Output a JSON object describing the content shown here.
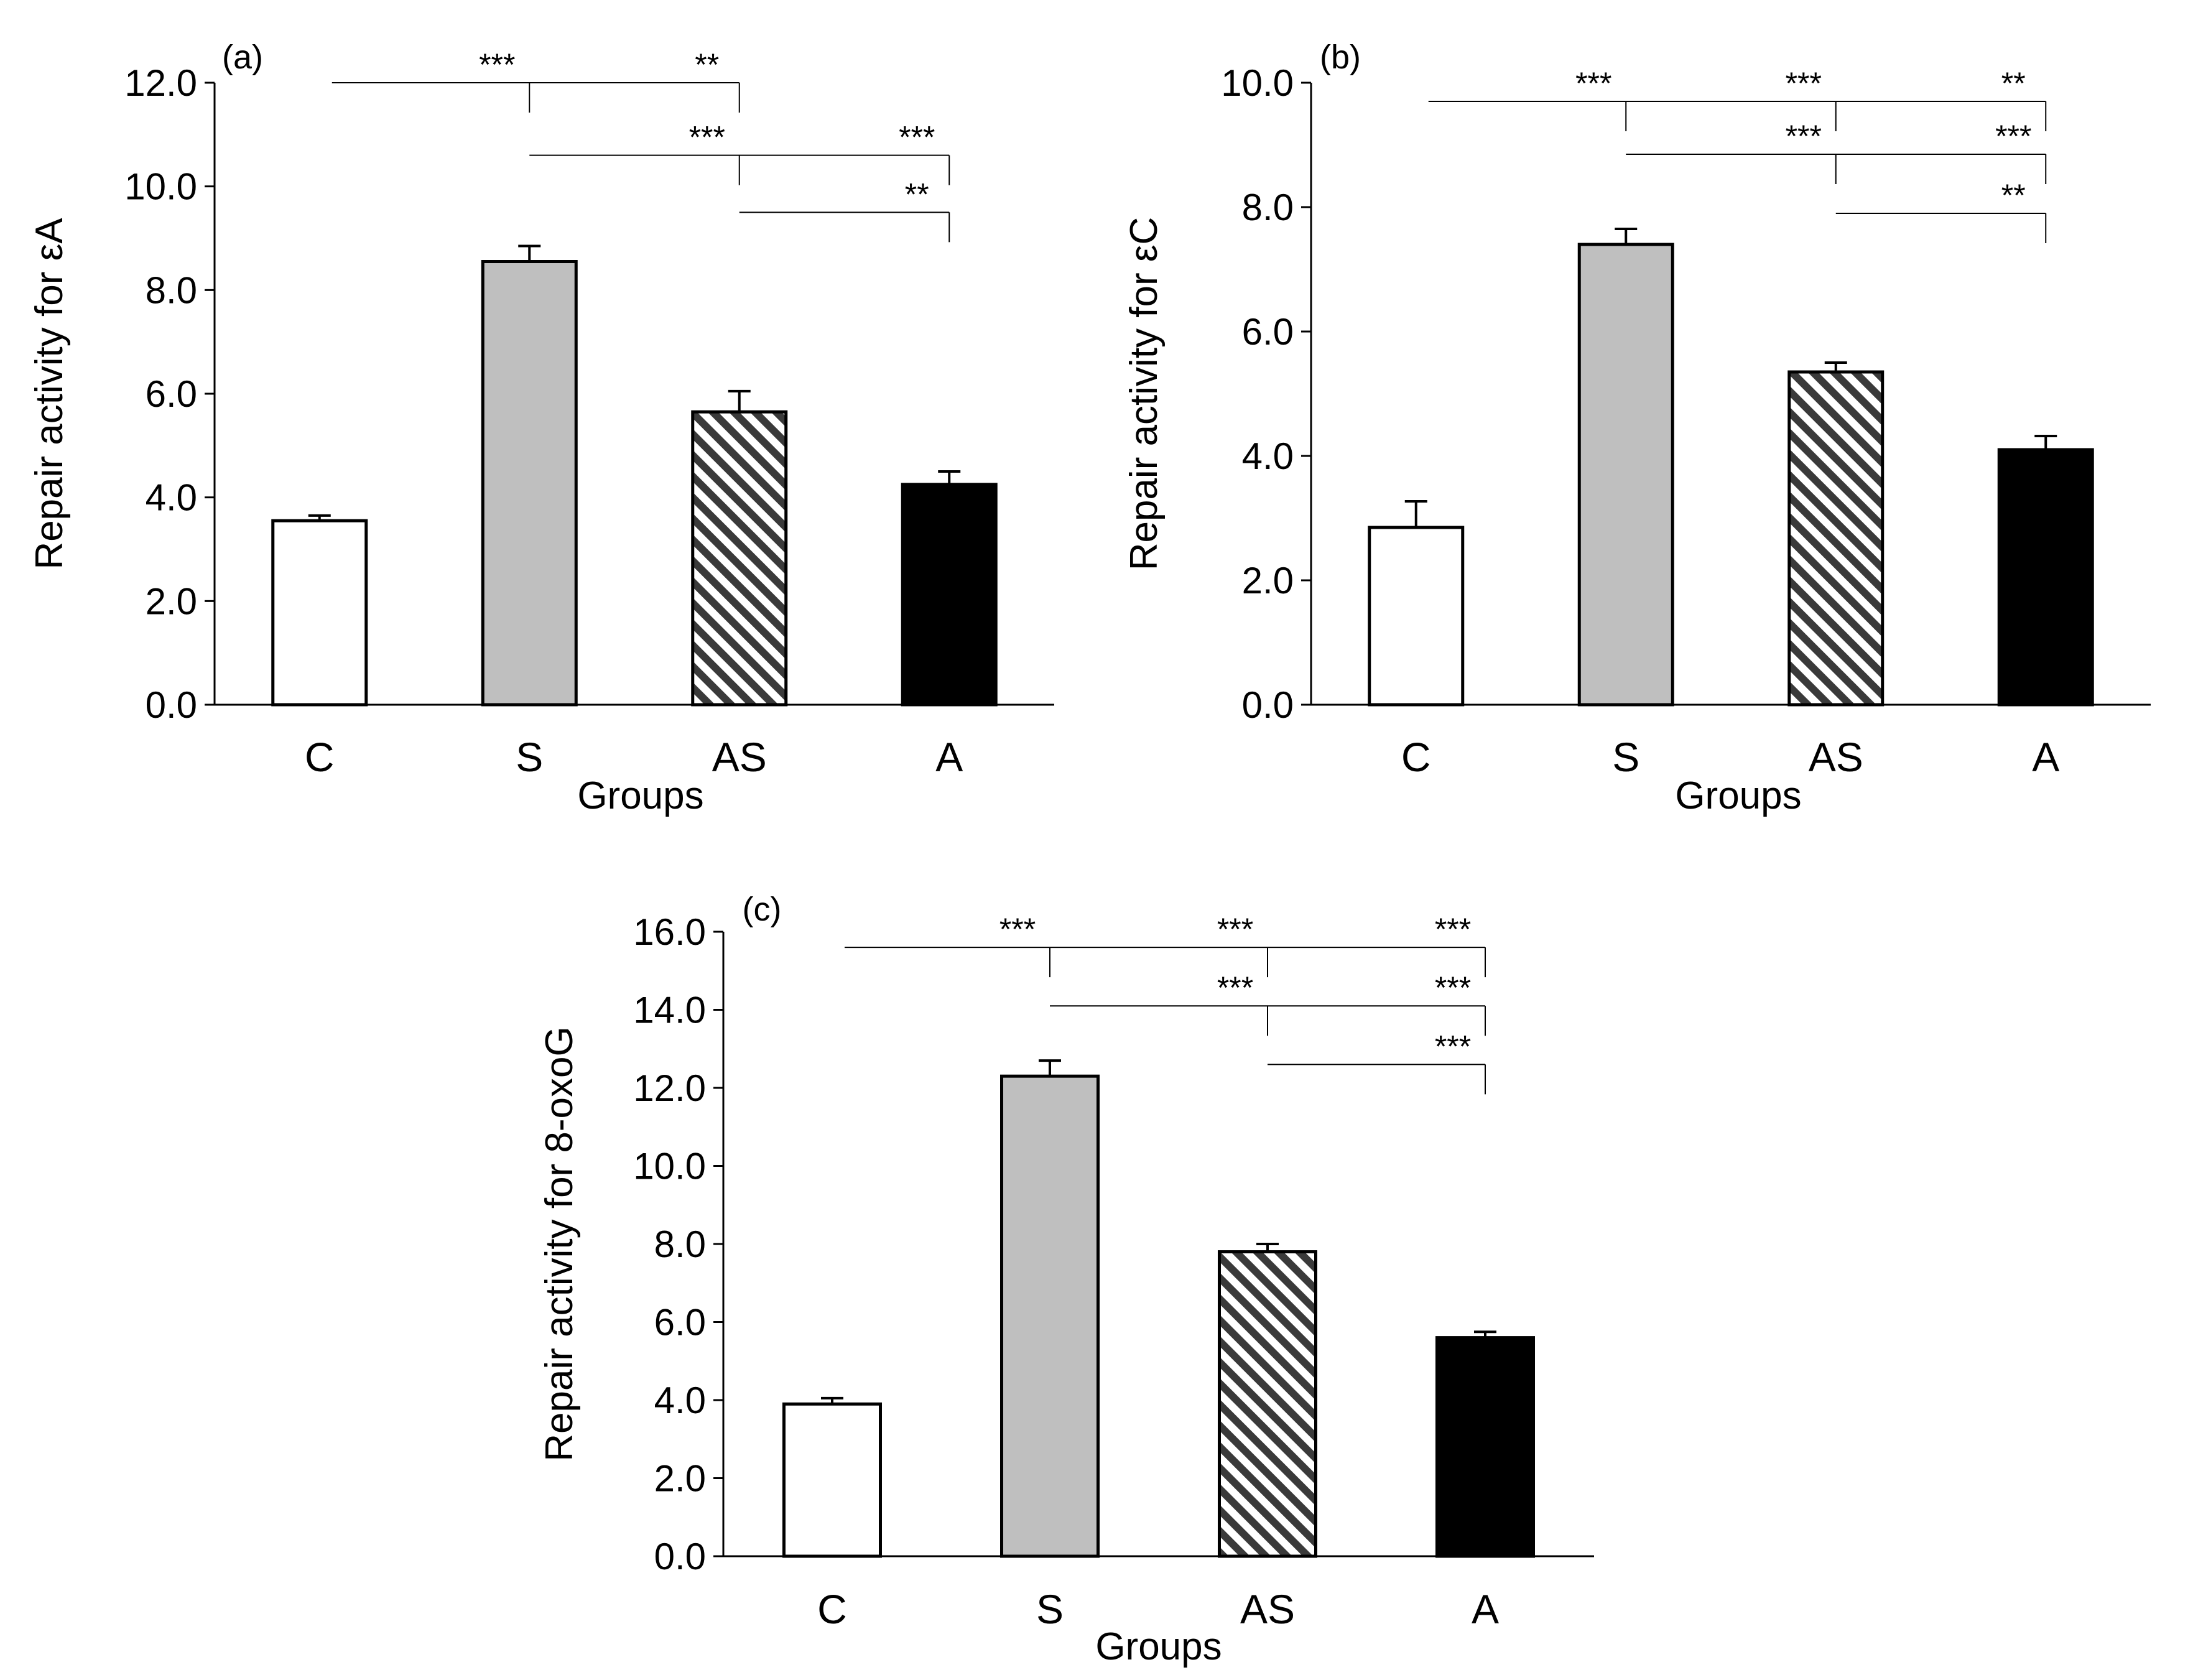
{
  "chart_data": [
    {
      "type": "bar",
      "panel_label": "(a)",
      "categories": [
        "C",
        "S",
        "AS",
        "A"
      ],
      "values": [
        3.55,
        8.55,
        5.65,
        4.25
      ],
      "errors": [
        0.1,
        0.3,
        0.4,
        0.25
      ],
      "fills": [
        "white",
        "gray",
        "hatched",
        "black"
      ],
      "ylabel": "Repair activity for εA",
      "xlabel": "Groups",
      "ylim": [
        0,
        12
      ],
      "yticks": [
        "0.0",
        "2.0",
        "4.0",
        "6.0",
        "8.0",
        "10.0",
        "12.0"
      ],
      "significance": [
        {
          "from": "C",
          "to": "AS",
          "label": "***",
          "split": "S",
          "right_label": "**",
          "level": 12.0
        },
        {
          "from": "S",
          "to": "A",
          "label": "***",
          "split": "AS",
          "right_label": "***",
          "level": 10.6
        },
        {
          "from": "AS",
          "to": "A",
          "label": "**",
          "level": 9.5
        }
      ]
    },
    {
      "type": "bar",
      "panel_label": "(b)",
      "categories": [
        "C",
        "S",
        "AS",
        "A"
      ],
      "values": [
        2.85,
        7.4,
        5.35,
        4.1
      ],
      "errors": [
        0.42,
        0.25,
        0.15,
        0.22
      ],
      "fills": [
        "white",
        "gray",
        "hatched",
        "black"
      ],
      "ylabel": "Repair activity for εC",
      "xlabel": "Groups",
      "ylim": [
        0,
        10
      ],
      "yticks": [
        "0.0",
        "2.0",
        "4.0",
        "6.0",
        "8.0",
        "10.0"
      ],
      "significance": [
        {
          "from": "C",
          "to": "A",
          "label": "***",
          "splits": [
            "S",
            "AS"
          ],
          "mid_label": "***",
          "right_label": "**",
          "level": 9.7
        },
        {
          "from": "S",
          "to": "A",
          "label": "***",
          "split": "AS",
          "right_label": "***",
          "level": 8.85
        },
        {
          "from": "AS",
          "to": "A",
          "label": "**",
          "level": 7.9
        }
      ]
    },
    {
      "type": "bar",
      "panel_label": "(c)",
      "categories": [
        "C",
        "S",
        "AS",
        "A"
      ],
      "values": [
        3.9,
        12.3,
        7.8,
        5.6
      ],
      "errors": [
        0.15,
        0.4,
        0.2,
        0.15
      ],
      "fills": [
        "white",
        "gray",
        "hatched",
        "black"
      ],
      "ylabel": "Repair activity for 8-oxoG",
      "xlabel": "Groups",
      "ylim": [
        0,
        16
      ],
      "yticks": [
        "0.0",
        "2.0",
        "4.0",
        "6.0",
        "8.0",
        "10.0",
        "12.0",
        "14.0",
        "16.0"
      ],
      "significance": [
        {
          "from": "C",
          "to": "A",
          "label": "***",
          "splits": [
            "S",
            "AS"
          ],
          "mid_label": "***",
          "right_label": "***",
          "level": 15.6
        },
        {
          "from": "S",
          "to": "A",
          "label": "***",
          "split": "AS",
          "right_label": "***",
          "level": 14.1
        },
        {
          "from": "AS",
          "to": "A",
          "label": "***",
          "level": 12.6
        }
      ]
    }
  ],
  "colors": {
    "white_fill": "#ffffff",
    "gray_fill": "#bfbfbf",
    "black_fill": "#000000",
    "hatch_dark": "#3a3a3a",
    "stroke": "#000000"
  }
}
